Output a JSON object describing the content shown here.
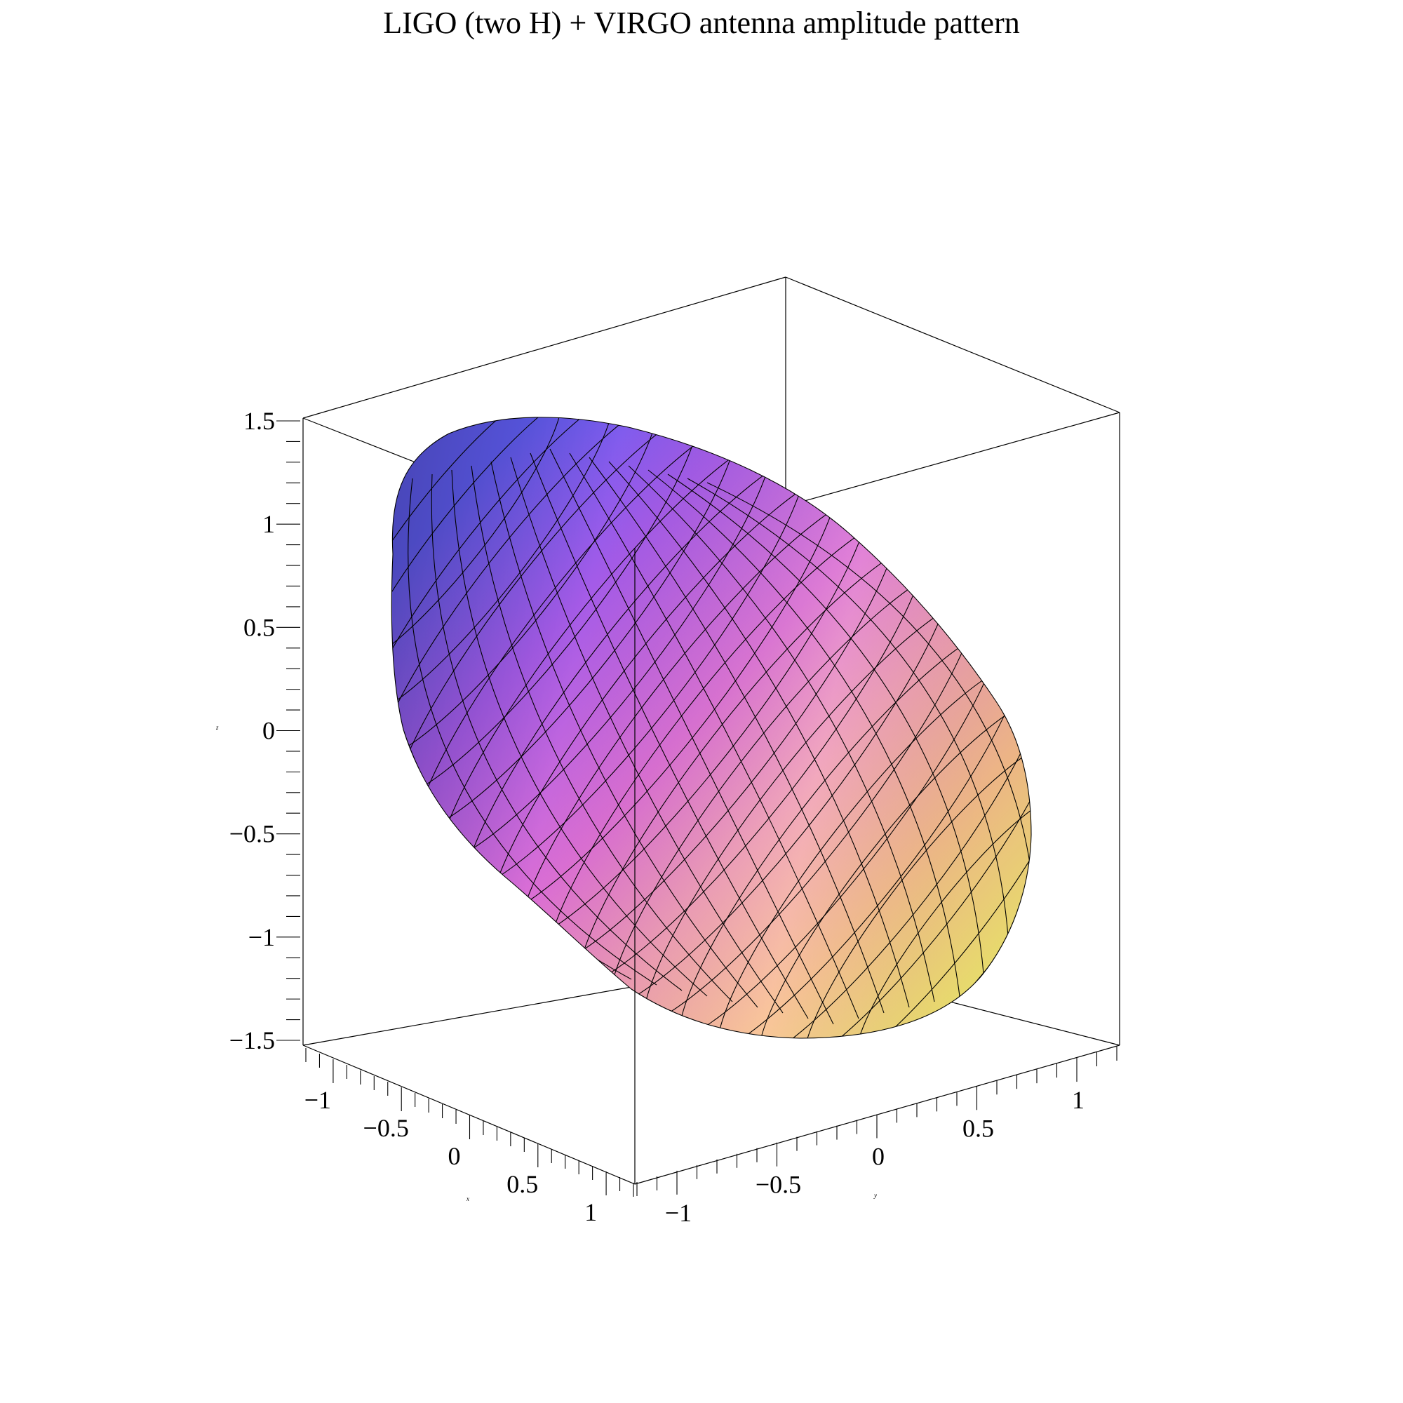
{
  "chart_data": {
    "type": "surface3d",
    "title": "LIGO (two H) + VIRGO antenna amplitude pattern",
    "xlabel": "x",
    "ylabel": "y",
    "zlabel": "z",
    "xlim": [
      -1.2,
      1.2
    ],
    "ylim": [
      -1.2,
      1.2
    ],
    "zlim": [
      -1.5,
      1.5
    ],
    "x_ticks": [
      {
        "value": -1,
        "label": "−1"
      },
      {
        "value": -0.5,
        "label": "−0.5"
      },
      {
        "value": 0,
        "label": "0"
      },
      {
        "value": 0.5,
        "label": "0.5"
      },
      {
        "value": 1,
        "label": "1"
      }
    ],
    "y_ticks": [
      {
        "value": -1,
        "label": "−1"
      },
      {
        "value": -0.5,
        "label": "−0.5"
      },
      {
        "value": 0,
        "label": "0"
      },
      {
        "value": 0.5,
        "label": "0.5"
      },
      {
        "value": 1,
        "label": "1"
      }
    ],
    "z_ticks": [
      {
        "value": 1.5,
        "label": "1.5"
      },
      {
        "value": 1,
        "label": "1"
      },
      {
        "value": 0.5,
        "label": "0.5"
      },
      {
        "value": 0,
        "label": "0"
      },
      {
        "value": -0.5,
        "label": "−0.5"
      },
      {
        "value": -1,
        "label": "−1"
      },
      {
        "value": -1.5,
        "label": "−1.5"
      }
    ],
    "surface": {
      "shape": "elongated peanut-like lobe",
      "color_gradient": [
        "#6a5cf0",
        "#b45ae6",
        "#e07ad0",
        "#f3a6a6",
        "#f8cf8a",
        "#f2ec72"
      ],
      "mesh": true
    },
    "grid": false,
    "legend": "none"
  }
}
